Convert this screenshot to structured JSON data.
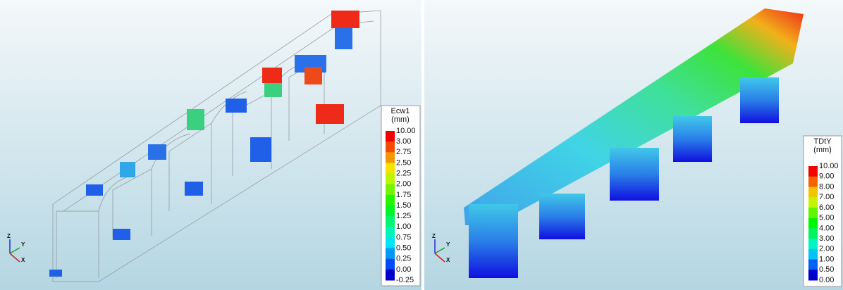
{
  "left_panel": {
    "legend": {
      "title": "Ecw1",
      "unit": "(mm)",
      "labels": [
        "10.00",
        "3.00",
        "2.75",
        "2.50",
        "2.25",
        "2.00",
        "1.75",
        "1.50",
        "1.25",
        "1.00",
        "0.75",
        "0.50",
        "0.25",
        "0.00",
        "-0.25"
      ]
    },
    "axes": {
      "x": "X",
      "y": "Y",
      "z": "Z"
    }
  },
  "right_panel": {
    "legend": {
      "title": "TDtY",
      "unit": "(mm)",
      "labels": [
        "10.00",
        "9.00",
        "8.00",
        "7.00",
        "6.00",
        "5.00",
        "4.00",
        "3.00",
        "2.00",
        "1.00",
        "0.50",
        "0.00"
      ]
    },
    "axes": {
      "x": "X",
      "y": "Y",
      "z": "Z"
    }
  }
}
